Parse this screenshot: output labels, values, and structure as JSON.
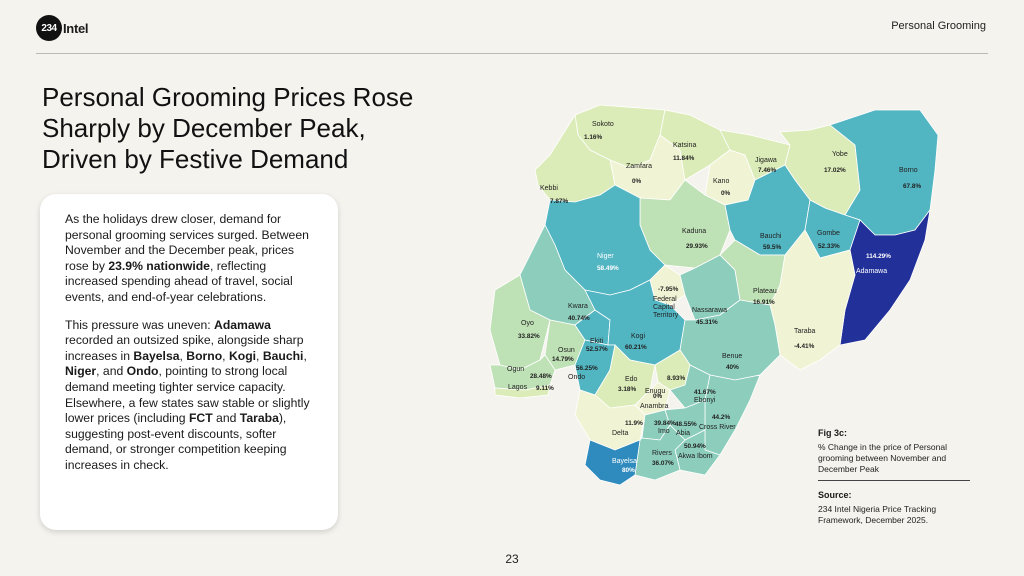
{
  "header": {
    "logo_number": "234",
    "logo_name": "Intel",
    "section": "Personal Grooming"
  },
  "title_lines": [
    "Personal Grooming Prices Rose",
    "Sharply by December Peak,",
    "Driven by Festive Demand"
  ],
  "card": {
    "p1_a": "As the holidays drew closer, demand for personal grooming services surged. Between November and the December peak, prices rose by ",
    "p1_b": "23.9% nationwide",
    "p1_c": ", reflecting increased spending ahead of travel, social events, and end-of-year celebrations.",
    "p2_a": "This pressure was uneven: ",
    "p2_adamawa": "Adamawa",
    "p2_b": " recorded an outsized spike, alongside sharp increases in ",
    "p2_bayelsa": "Bayelsa",
    "p2_c": ", ",
    "p2_borno": "Borno",
    "p2_d": ", ",
    "p2_kogi": "Kogi",
    "p2_e": ", ",
    "p2_bauchi": "Bauchi",
    "p2_f": ", ",
    "p2_niger": "Niger",
    "p2_g": ", and ",
    "p2_ondo": "Ondo",
    "p2_h": ", pointing to strong local demand meeting tighter service capacity. Elsewhere, a few states saw stable or slightly lower prices (including ",
    "p2_fct": "FCT",
    "p2_i": " and ",
    "p2_taraba": "Taraba",
    "p2_j": "), suggesting post-event discounts, softer demand, or stronger competition keeping increases in check."
  },
  "map": {
    "states": [
      {
        "name": "Sokoto",
        "value": "1.16%"
      },
      {
        "name": "Katsina",
        "value": "11.84%"
      },
      {
        "name": "Zamfara",
        "value": "0%"
      },
      {
        "name": "Kano",
        "value": "0%"
      },
      {
        "name": "Jigawa",
        "value": "7.46%"
      },
      {
        "name": "Yobe",
        "value": "17.02%"
      },
      {
        "name": "Borno",
        "value": "67.8%"
      },
      {
        "name": "Kebbi",
        "value": "7.87%"
      },
      {
        "name": "Kaduna",
        "value": "29.93%"
      },
      {
        "name": "Bauchi",
        "value": "59.5%"
      },
      {
        "name": "Gombe",
        "value": "52.33%"
      },
      {
        "name": "Adamawa",
        "value": "114.29%"
      },
      {
        "name": "Niger",
        "value": "58.49%"
      },
      {
        "name": "Federal Capital Territory",
        "value": "-7.95%"
      },
      {
        "name": "Nassarawa",
        "value": "45.31%"
      },
      {
        "name": "Plateau",
        "value": "16.91%"
      },
      {
        "name": "Taraba",
        "value": "-4.41%"
      },
      {
        "name": "Kwara",
        "value": "40.74%"
      },
      {
        "name": "Oyo",
        "value": "33.82%"
      },
      {
        "name": "Osun",
        "value": "14.79%"
      },
      {
        "name": "Ekiti",
        "value": "52.57%"
      },
      {
        "name": "Kogi",
        "value": "60.21%"
      },
      {
        "name": "Ondo",
        "value": "56.25%"
      },
      {
        "name": "Ogun",
        "value": "28.48%"
      },
      {
        "name": "Lagos",
        "value": "9.11%"
      },
      {
        "name": "Edo",
        "value": "3.18%"
      },
      {
        "name": "Benue",
        "value": "40%"
      },
      {
        "name": "Enugu",
        "value": "8.93%"
      },
      {
        "name": "Anambra",
        "value": "0%"
      },
      {
        "name": "Ebonyi",
        "value": "41.67%"
      },
      {
        "name": "Cross River",
        "value": "44.2%"
      },
      {
        "name": "Delta",
        "value": "11.9%"
      },
      {
        "name": "Imo",
        "value": "39.84%"
      },
      {
        "name": "Abia",
        "value": "48.55%"
      },
      {
        "name": "Akwa Ibom",
        "value": "50.94%"
      },
      {
        "name": "Rivers",
        "value": "36.07%"
      },
      {
        "name": "Bayelsa",
        "value": "80%"
      }
    ],
    "colors": {
      "lowest": "#f1f4d4",
      "low": "#dcecb8",
      "mid_low": "#bfe1b6",
      "mid": "#8ccdbb",
      "mid_high": "#52b5c2",
      "high": "#2f8bbd",
      "highest": "#22309a"
    }
  },
  "figure": {
    "title": "Fig 3c:",
    "description": "% Change in the price of Personal grooming between November and December Peak"
  },
  "source": {
    "title": "Source:",
    "description": "234 Intel Nigeria Price Tracking Framework, December 2025."
  },
  "page_number": "23"
}
